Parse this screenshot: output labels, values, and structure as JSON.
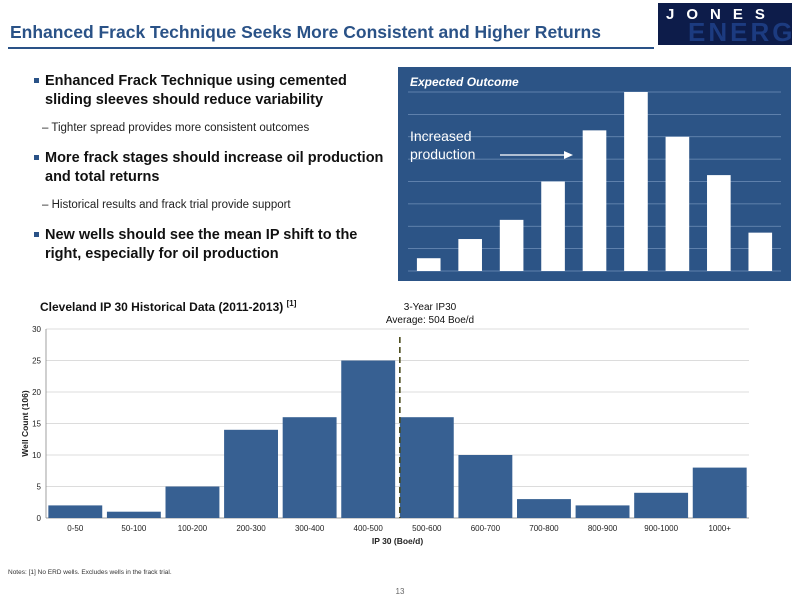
{
  "header": {
    "title": "Enhanced Frack Technique Seeks More Consistent and Higher Returns",
    "logo_text_1": "JONES",
    "logo_text_2": "ENERGY"
  },
  "bullets": [
    {
      "main": "Enhanced Frack Technique using cemented sliding sleeves should reduce variability",
      "sub": "– Tighter spread provides more consistent outcomes"
    },
    {
      "main": "More frack stages should increase oil production and total returns",
      "sub": "– Historical results and frack trial provide support"
    },
    {
      "main": "New wells should see the mean IP shift to the right, especially for oil production",
      "sub": ""
    }
  ],
  "expected_panel": {
    "title": "Expected Outcome",
    "label": "Increased production",
    "values": [
      2,
      5,
      8,
      14,
      22,
      28,
      21,
      15,
      6
    ],
    "ymax": 28
  },
  "chart_data": {
    "type": "bar",
    "title": "Cleveland IP 30 Historical Data (2011-2013)",
    "title_footnote": "[1]",
    "categories": [
      "0-50",
      "50-100",
      "100-200",
      "200-300",
      "300-400",
      "400-500",
      "500-600",
      "600-700",
      "700-800",
      "800-900",
      "900-1000",
      "1000+"
    ],
    "values": [
      2,
      1,
      5,
      14,
      16,
      25,
      16,
      10,
      3,
      2,
      4,
      8
    ],
    "xlabel": "IP 30 (Boe/d)",
    "ylabel": "Well Count (106)",
    "ylim": [
      0,
      30
    ],
    "yticks": [
      0,
      5,
      10,
      15,
      20,
      25,
      30
    ],
    "grid": true,
    "bar_color": "#376092",
    "average_line": {
      "value": 504,
      "label_line1": "3-Year IP30",
      "label_line2": "Average: 504 Boe/d"
    }
  },
  "footer": {
    "note": "Notes: [1] No ERD wells. Excludes wells in the frack trial.",
    "page": "13"
  }
}
